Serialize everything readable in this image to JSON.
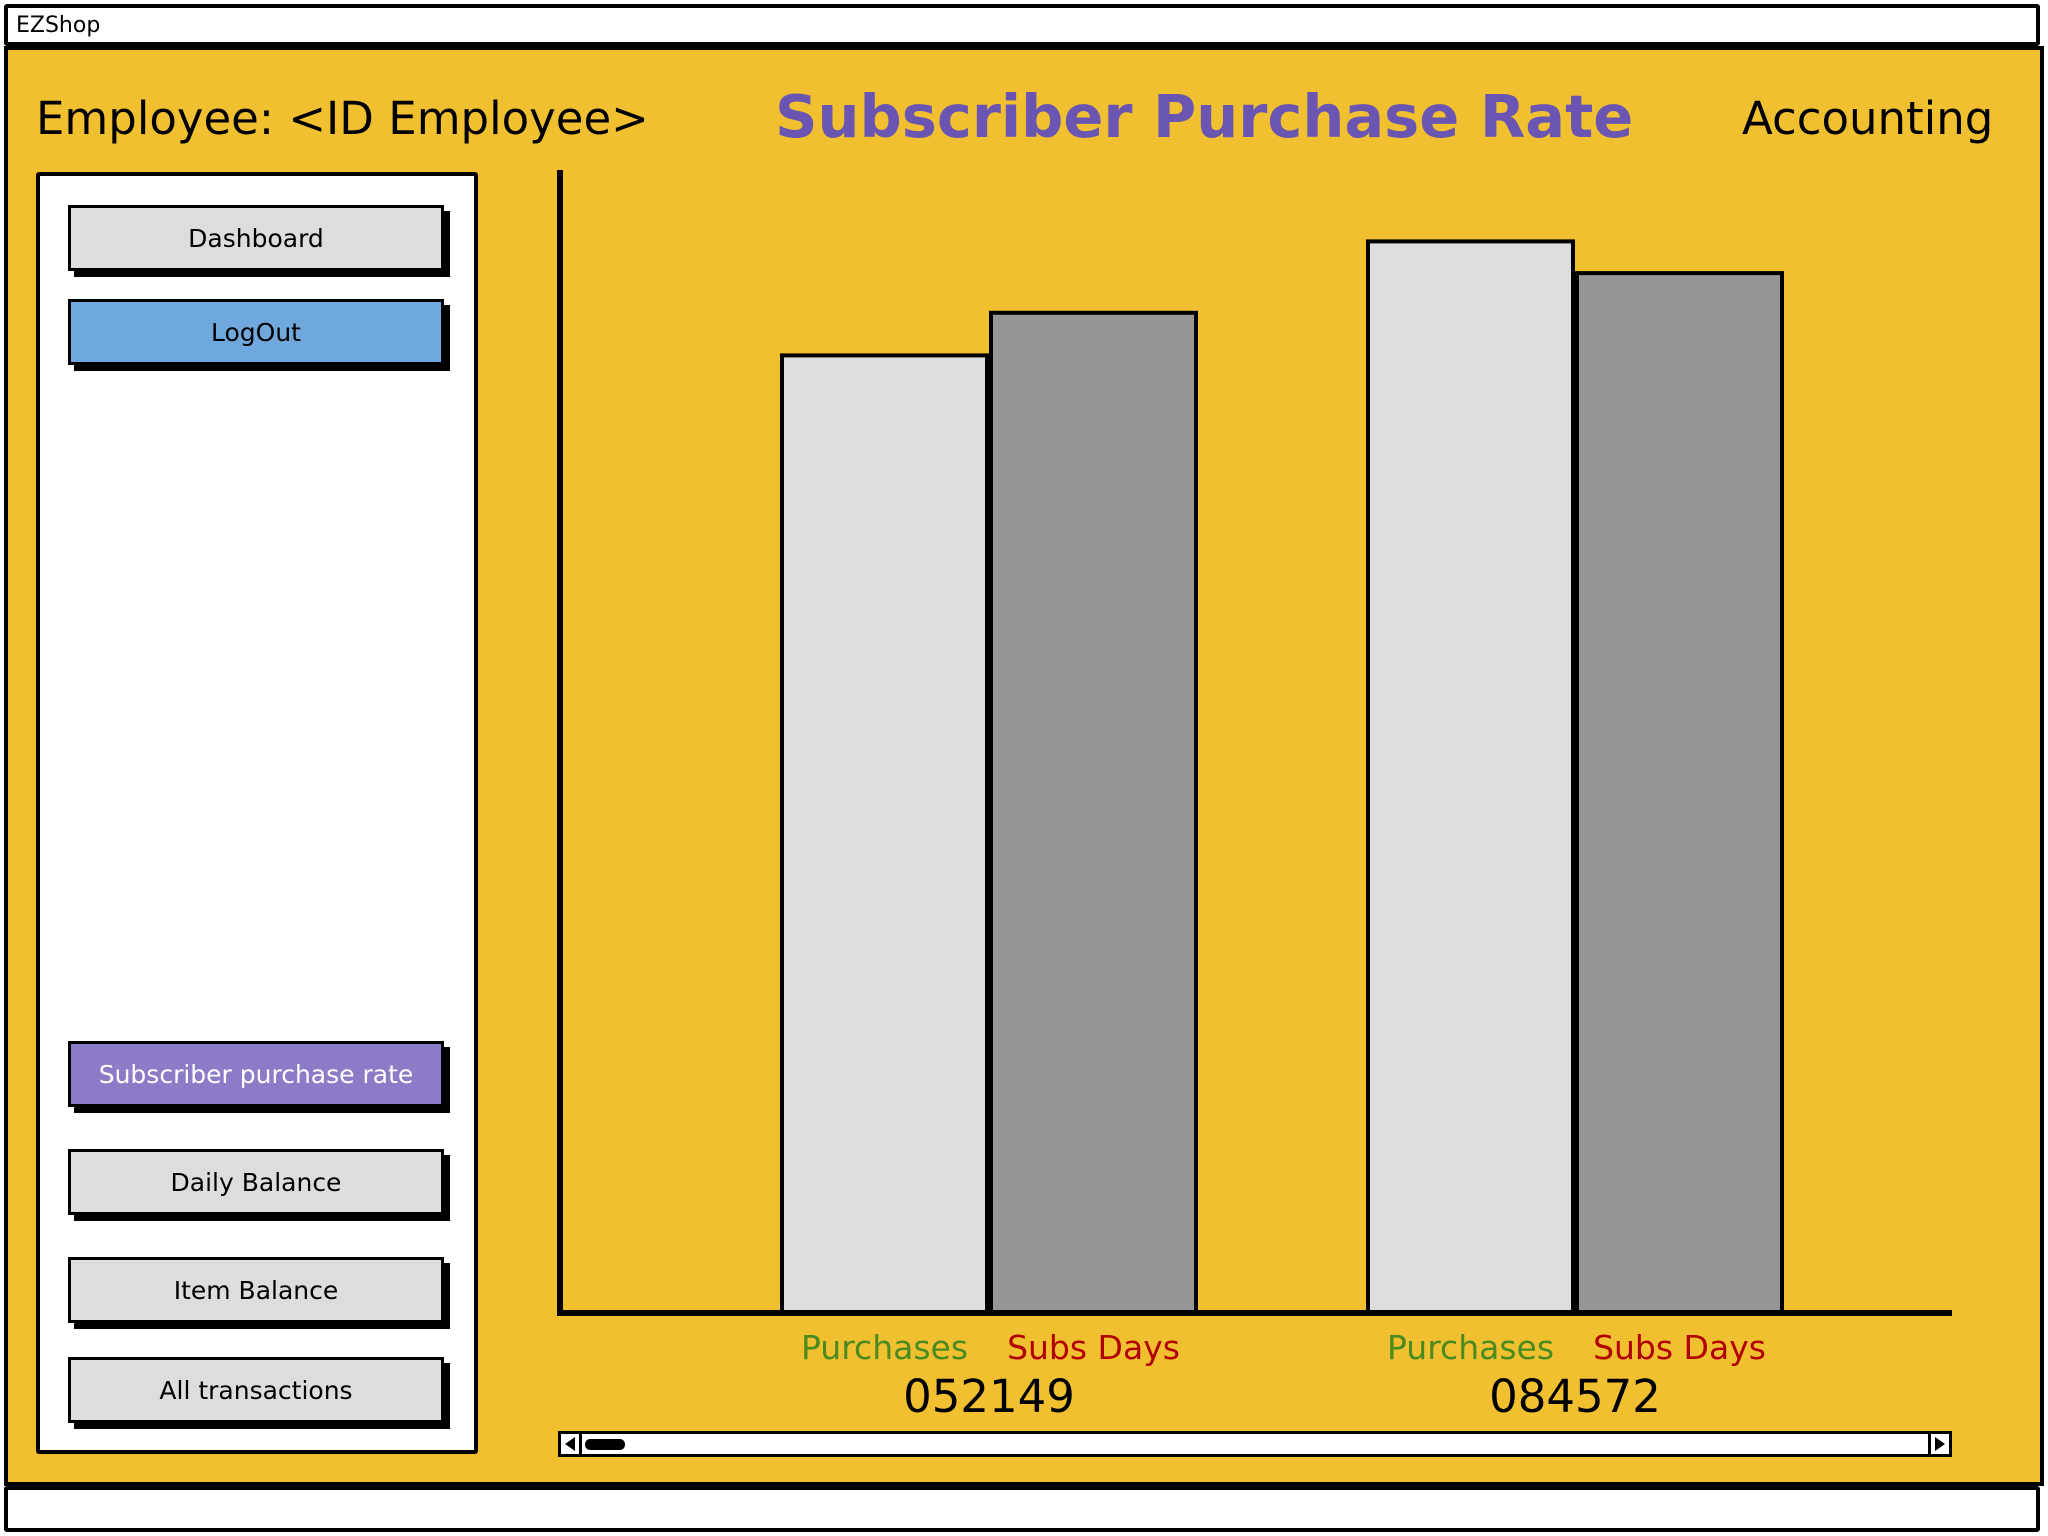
{
  "window": {
    "title": "EZShop"
  },
  "header": {
    "employee_label": "Employee: <ID Employee>",
    "page_title": "Subscriber Purchase Rate",
    "section": "Accounting"
  },
  "sidebar": {
    "dashboard": "Dashboard",
    "logout": "LogOut",
    "subscriber_purchase_rate": "Subscriber purchase rate",
    "daily_balance": "Daily Balance",
    "item_balance": "Item Balance",
    "all_transactions": "All transactions"
  },
  "colors": {
    "background": "#F0C030",
    "title": "#6A55B3",
    "logout_button": "#6FA8DC",
    "active_button": "#8C7CC8",
    "purchases_bar": "#DDDDDD",
    "subs_days_bar": "#969696",
    "purchases_label": "#4A8A1E",
    "subs_days_label": "#B00000"
  },
  "chart_data": {
    "type": "bar",
    "categories": [
      "052149",
      "084572"
    ],
    "series": [
      {
        "name": "Purchases",
        "values": [
          965,
          1080
        ]
      },
      {
        "name": "Subs Days",
        "values": [
          1008,
          1048
        ]
      }
    ],
    "ylim": [
      0,
      1150
    ],
    "grid": false
  }
}
